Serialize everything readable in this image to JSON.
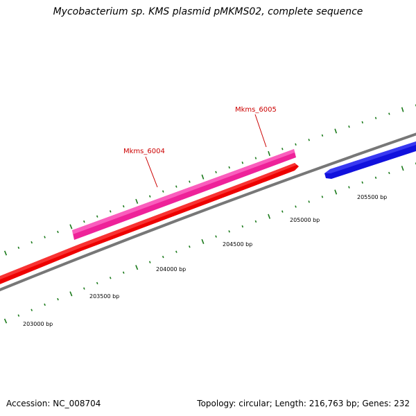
{
  "title": "Mycobacterium sp. KMS plasmid pMKMS02, complete sequence",
  "footer": {
    "accession": "Accession: NC_008704",
    "summary": "Topology: circular; Length: 216,763 bp; Genes: 232"
  },
  "colors": {
    "backbone": "#888888",
    "tick": "#1a7a1a",
    "gene_magenta": "#ee2299",
    "gene_red": "#ee0000",
    "gene_blue": "#1111dd",
    "label_line": "#cc0000"
  },
  "scale_labels": [
    {
      "bp": 203000,
      "label": "203000 bp"
    },
    {
      "bp": 203500,
      "label": "203500 bp"
    },
    {
      "bp": 204000,
      "label": "204000 bp"
    },
    {
      "bp": 204500,
      "label": "204500 bp"
    },
    {
      "bp": 205000,
      "label": "205000 bp"
    },
    {
      "bp": 205500,
      "label": "205500 bp"
    }
  ],
  "genes": [
    {
      "name": "Mkms_6004",
      "strand": "forward",
      "color": "magenta"
    },
    {
      "name": "Mkms_6005",
      "strand": "forward",
      "color": "red"
    },
    {
      "name": "",
      "strand": "forward",
      "color": "blue"
    }
  ]
}
